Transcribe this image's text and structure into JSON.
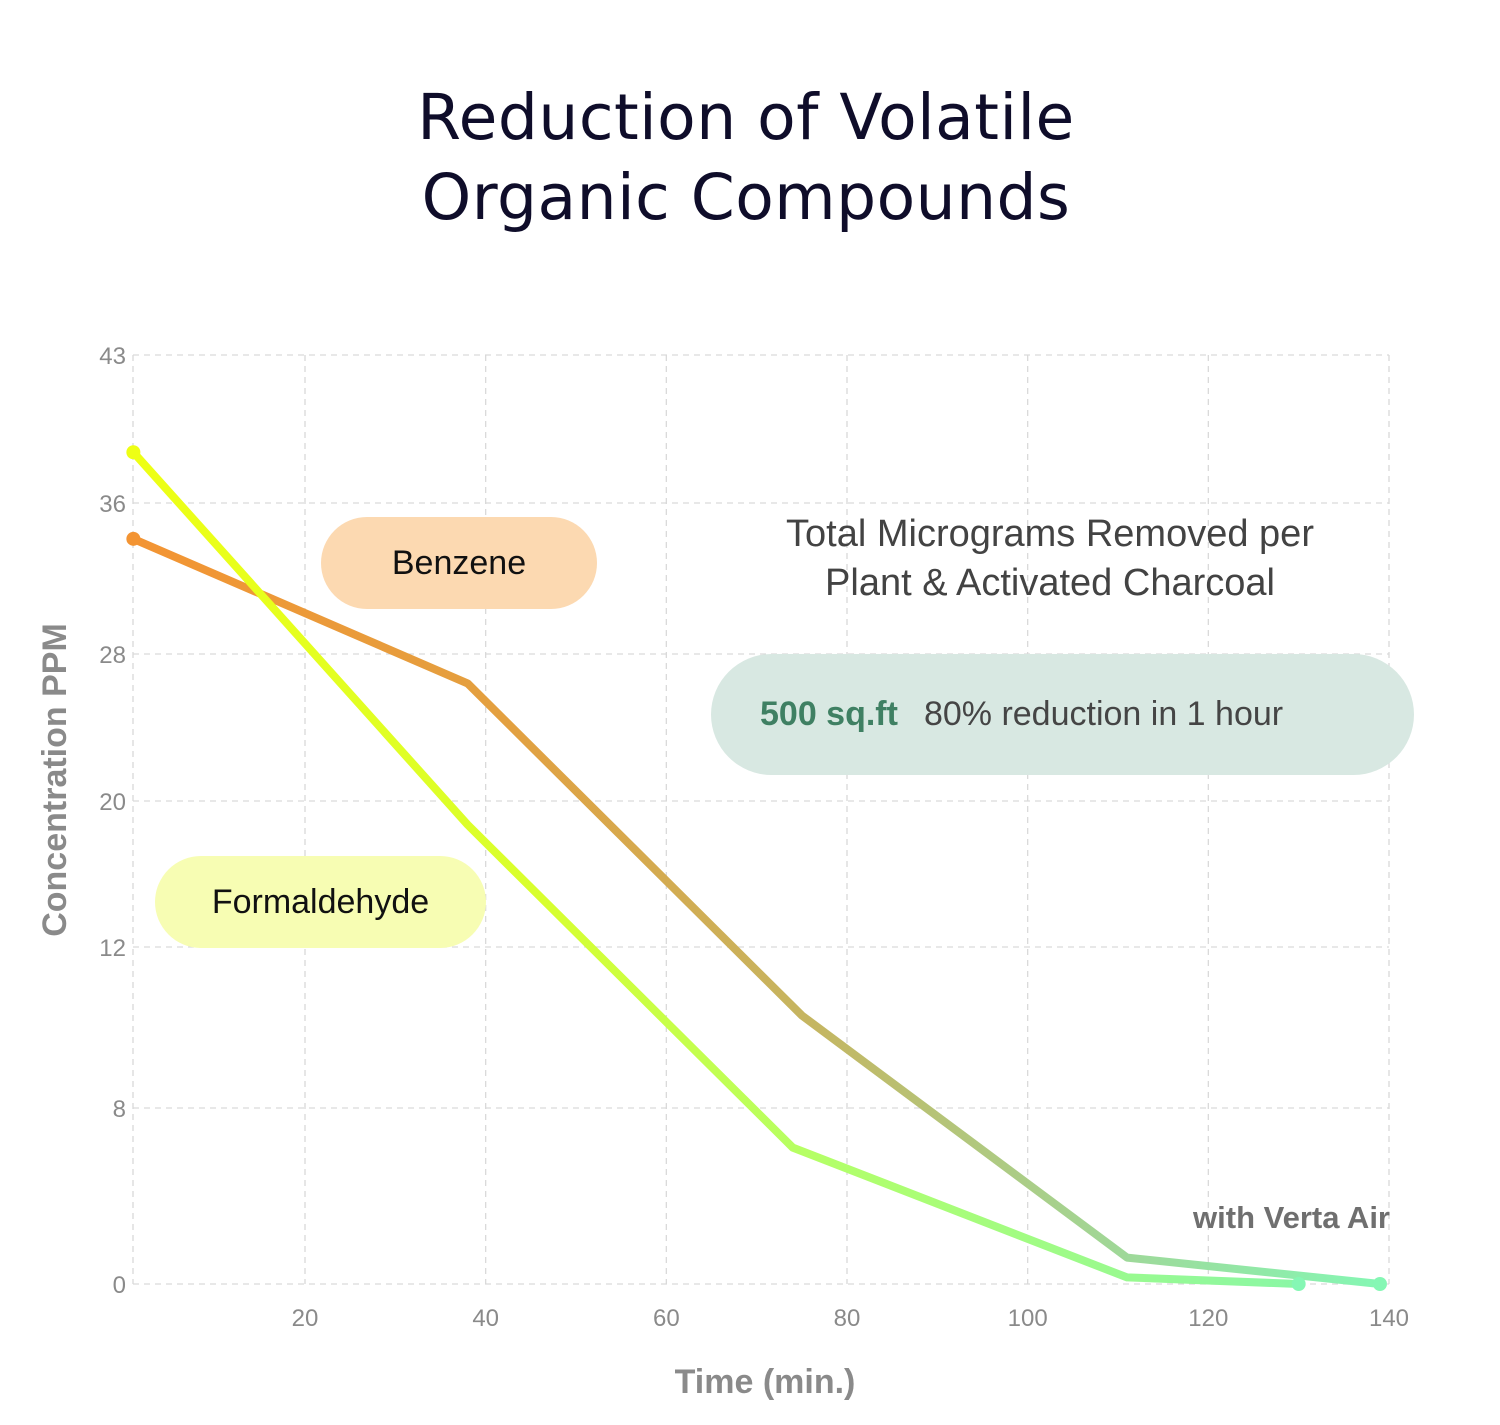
{
  "title": {
    "line1": "Reduction of Volatile",
    "line2": "Organic Compounds"
  },
  "annotation": {
    "heading_line1": "Total Micrograms Removed per",
    "heading_line2": "Plant & Activated Charcoal",
    "stat_area": "500 sq.ft",
    "stat_text": "80% reduction in 1 hour",
    "footnote": "with Verta Air"
  },
  "labels": {
    "benzene": "Benzene",
    "formaldehyde": "Formaldehyde"
  },
  "colors": {
    "title": "#0f0d2a",
    "benzene_start": "#f39433",
    "formaldehyde_start": "#eeff14",
    "line_end": "#85f7b4",
    "benzene_pill": "#fcd9b1",
    "formaldehyde_pill": "#f7fdb3",
    "stat_pill": "#d8e8e2",
    "stat_accent": "#3f8063",
    "grid": "#d9d9d9",
    "tick_text": "#8a8a8a"
  },
  "chart_data": {
    "type": "line",
    "title": "Reduction of Volatile Organic Compounds",
    "xlabel": "Time (min.)",
    "ylabel": "Concentration PPM",
    "x_ticks": [
      20,
      40,
      60,
      80,
      100,
      120,
      140
    ],
    "y_ticks": [
      0,
      8,
      12,
      20,
      28,
      36,
      43
    ],
    "y_scale_note": "y tick labels are evenly spaced (non-linear axis)",
    "xlim": [
      0,
      140
    ],
    "ylim": [
      0,
      43
    ],
    "grid": true,
    "legend": "inline labels",
    "series": [
      {
        "name": "Formaldehyde",
        "x": [
          1,
          38,
          74,
          111,
          130
        ],
        "y": [
          38.4,
          18.7,
          6.2,
          0.3,
          0
        ]
      },
      {
        "name": "Benzene",
        "x": [
          1,
          38,
          75,
          111,
          139
        ],
        "y": [
          34.1,
          26.4,
          10.3,
          1.2,
          0
        ]
      }
    ]
  }
}
